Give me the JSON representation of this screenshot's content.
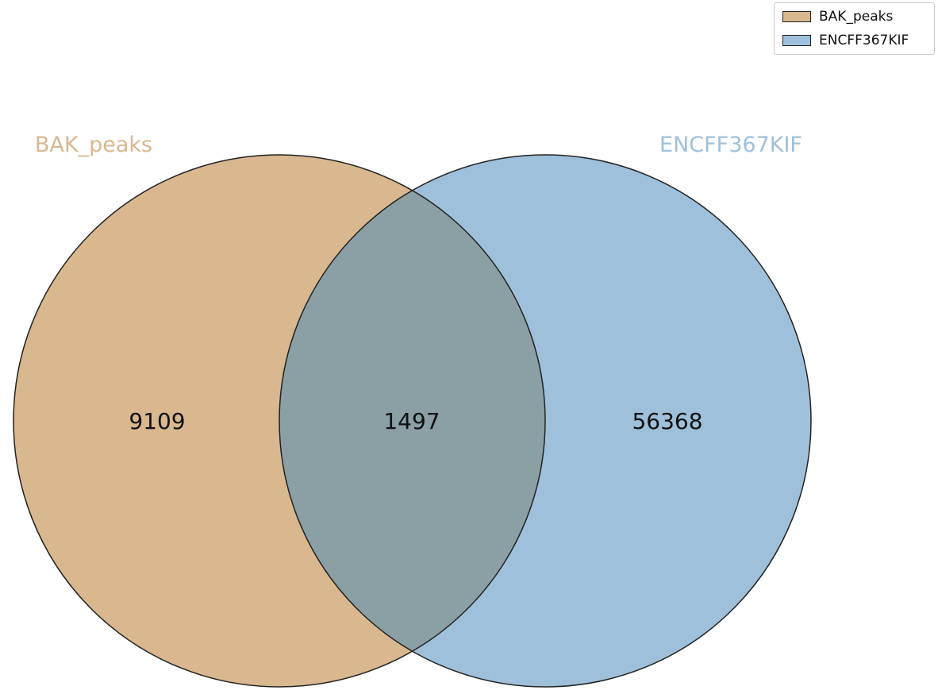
{
  "diagram": {
    "type": "venn2",
    "sets": [
      {
        "name": "BAK_peaks",
        "color": "#d9b78f"
      },
      {
        "name": "ENCFF367KIF",
        "color": "#9fc0da"
      }
    ],
    "overlap_color": "#8ba0a5",
    "edge_color": "#222222",
    "regions": {
      "only_a": "9109",
      "both": "1497",
      "only_b": "56368"
    }
  },
  "legend": {
    "items": [
      {
        "label": "BAK_peaks",
        "color": "#d9b78f"
      },
      {
        "label": "ENCFF367KIF",
        "color": "#9fc0da"
      }
    ]
  }
}
